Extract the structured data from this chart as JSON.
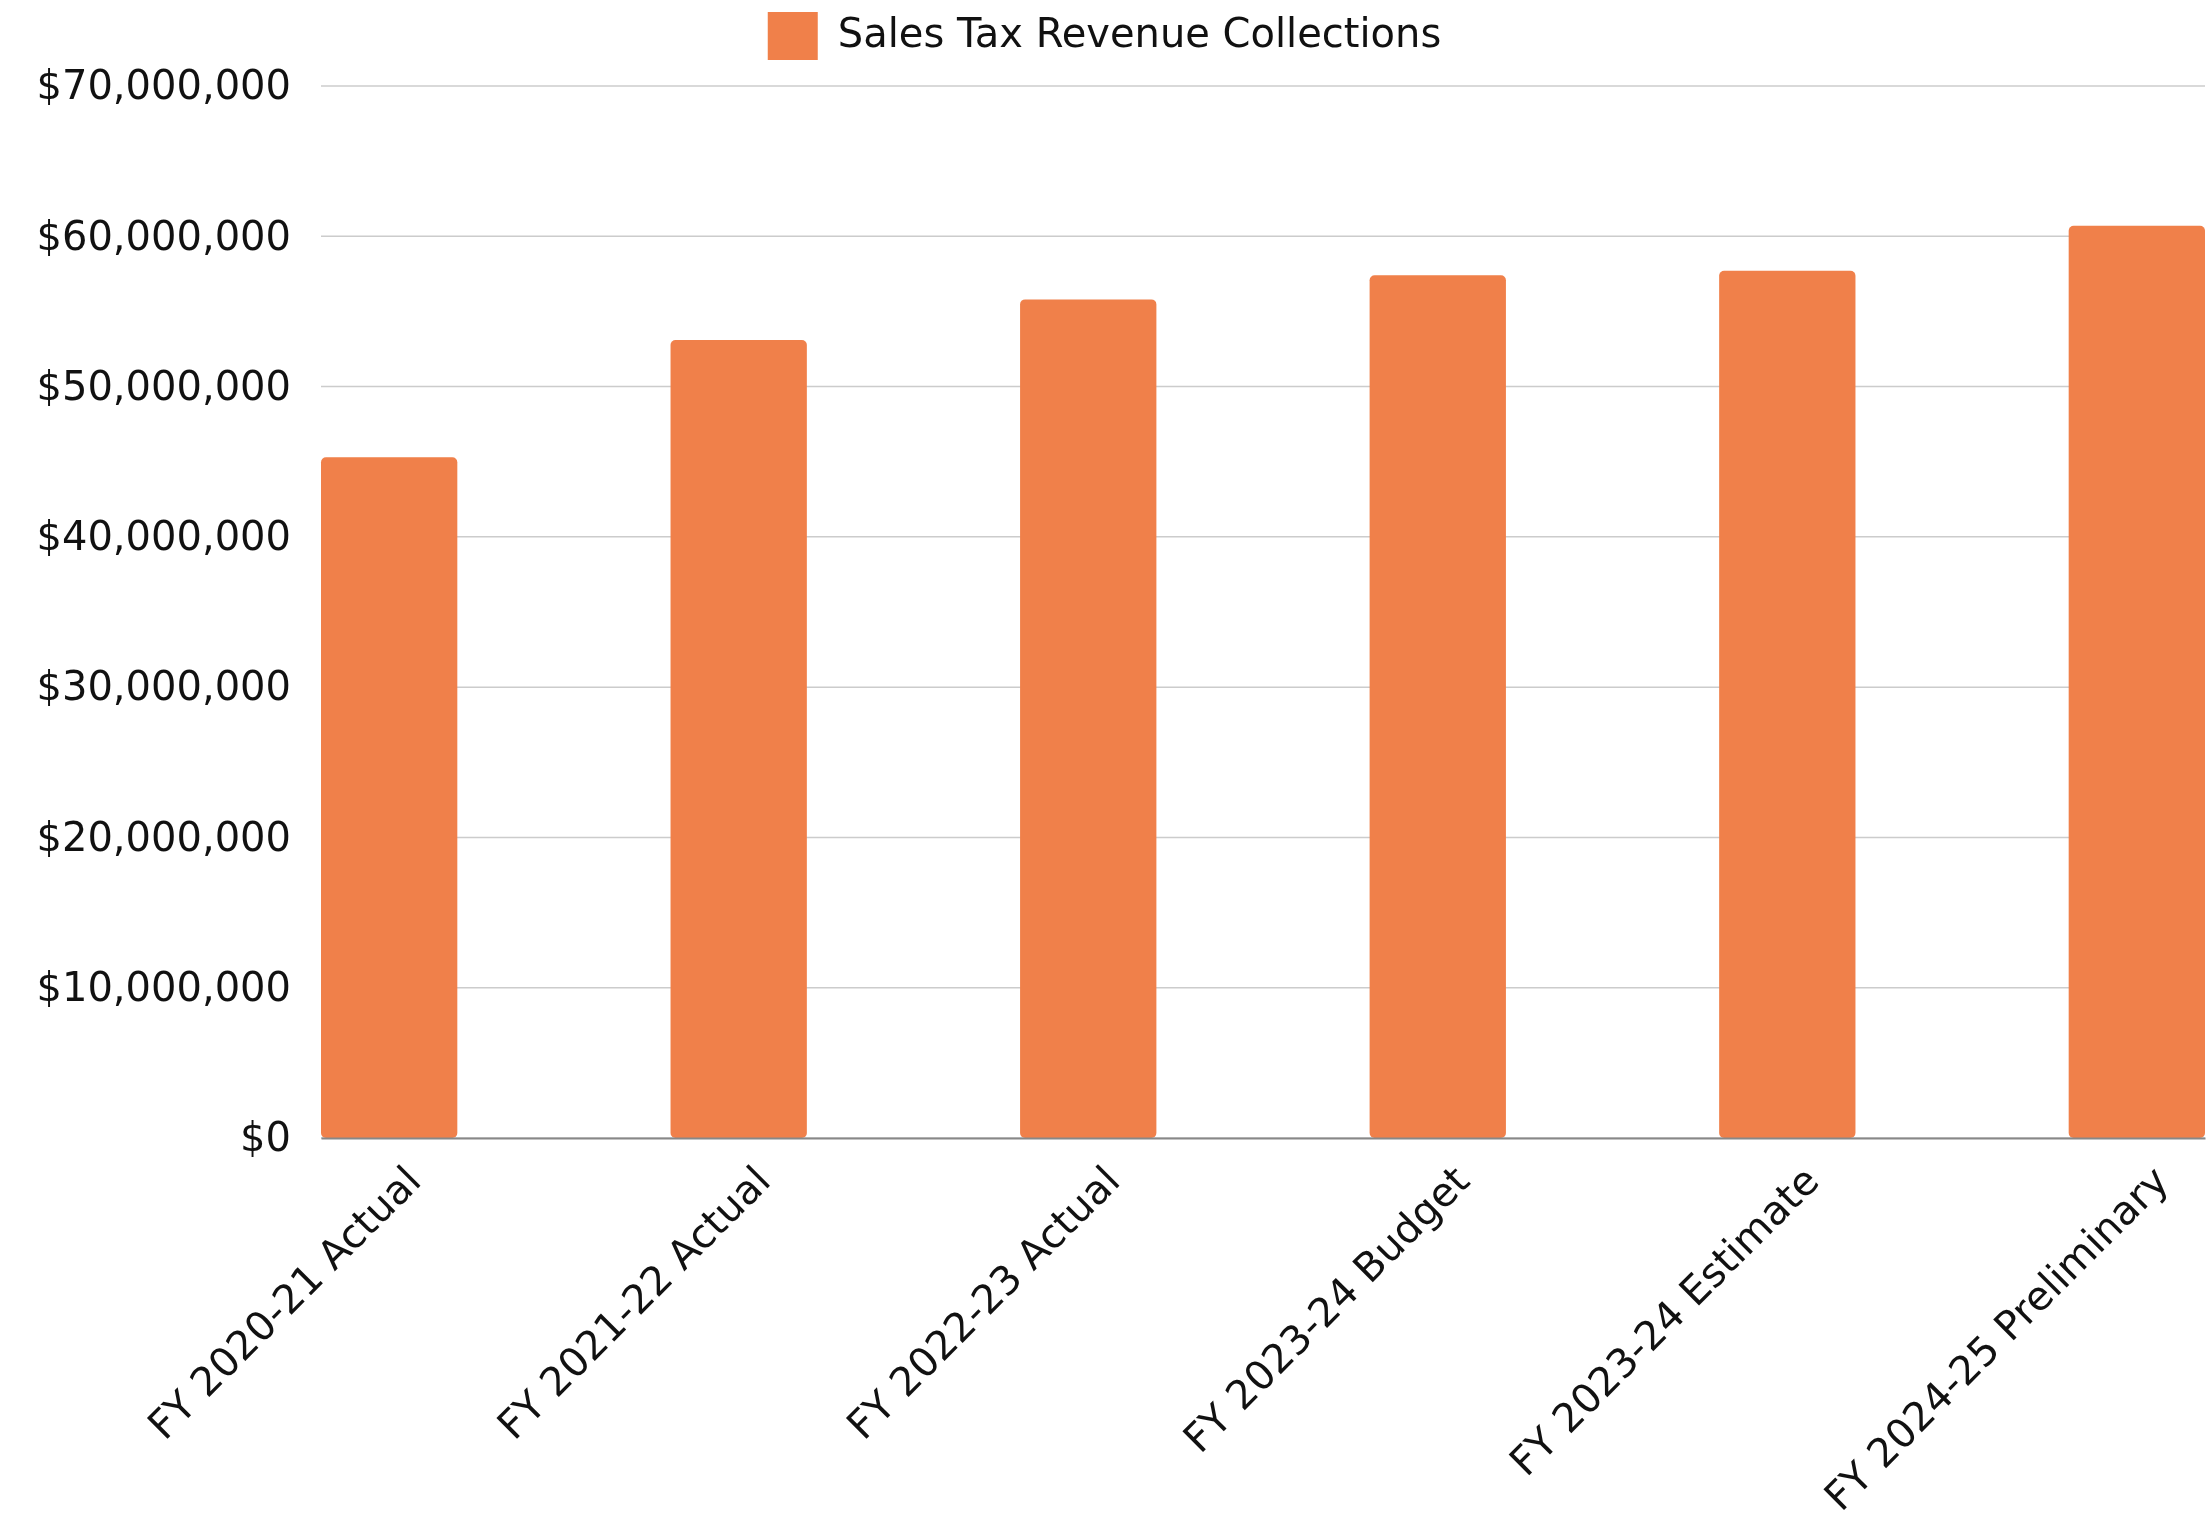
{
  "chart_data": {
    "type": "bar",
    "categories": [
      "FY 2020-21 Actual",
      "FY 2021-22 Actual",
      "FY 2022-23 Actual",
      "FY 2023-24 Budget",
      "FY 2023-24 Estimate",
      "FY 2024-25 Preliminary"
    ],
    "series": [
      {
        "name": "Sales Tax Revenue Collections",
        "color": "#f0804a",
        "values": [
          45300000,
          53100000,
          55800000,
          57400000,
          57700000,
          60700000
        ]
      }
    ],
    "ylim": [
      0,
      70000000
    ],
    "yticks": [
      {
        "value": 0,
        "label": "$0"
      },
      {
        "value": 10000000,
        "label": "$10,000,000"
      },
      {
        "value": 20000000,
        "label": "$20,000,000"
      },
      {
        "value": 30000000,
        "label": "$30,000,000"
      },
      {
        "value": 40000000,
        "label": "$40,000,000"
      },
      {
        "value": 50000000,
        "label": "$50,000,000"
      },
      {
        "value": 60000000,
        "label": "$60,000,000"
      },
      {
        "value": 70000000,
        "label": "$70,000,000"
      }
    ],
    "grid": "y",
    "legend": "top"
  }
}
